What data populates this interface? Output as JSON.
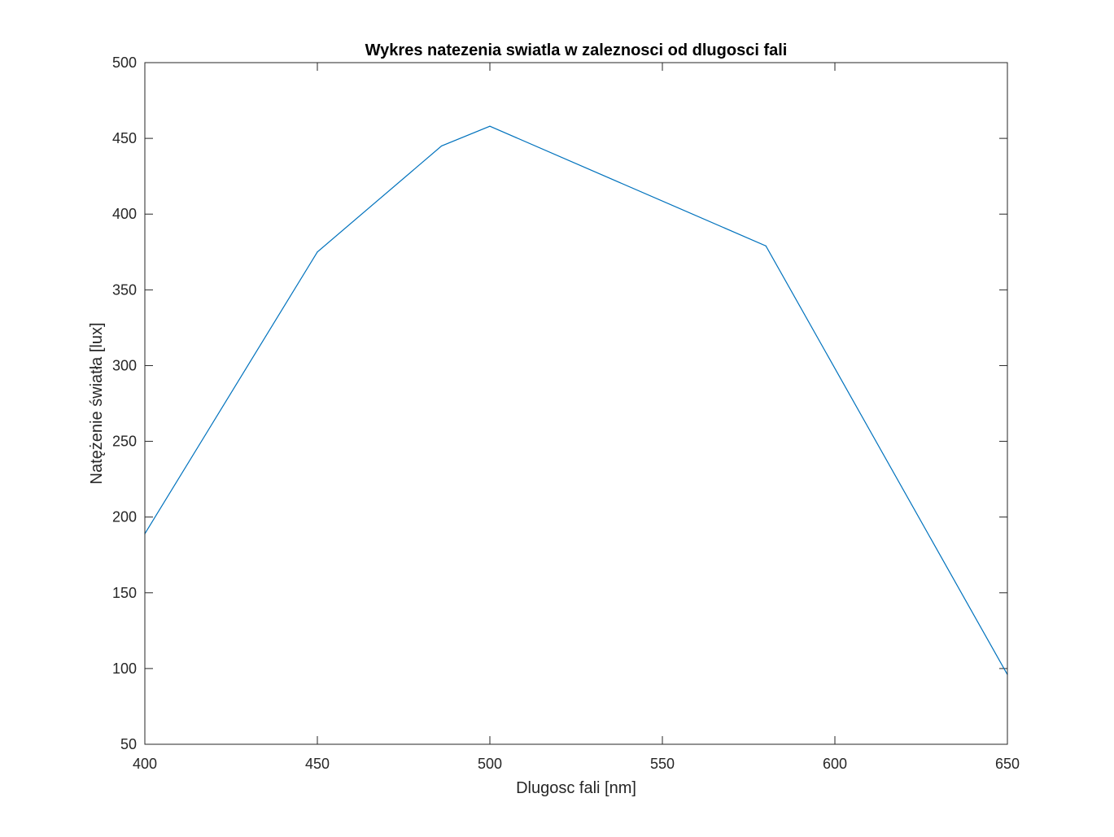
{
  "chart_data": {
    "type": "line",
    "title": "Wykres natezenia swiatla w zaleznosci od dlugosci fali",
    "xlabel": "Dlugosc fali [nm]",
    "ylabel": "Natężenie światła [lux]",
    "xlim": [
      400,
      650
    ],
    "ylim": [
      50,
      500
    ],
    "xticks": [
      400,
      450,
      500,
      550,
      600,
      650
    ],
    "yticks": [
      50,
      100,
      150,
      200,
      250,
      300,
      350,
      400,
      450,
      500
    ],
    "grid": false,
    "series": [
      {
        "color": "#0072bd",
        "x": [
          400,
          450,
          486,
          500,
          580,
          650
        ],
        "y": [
          189,
          375,
          445,
          458,
          379,
          96
        ]
      }
    ]
  }
}
